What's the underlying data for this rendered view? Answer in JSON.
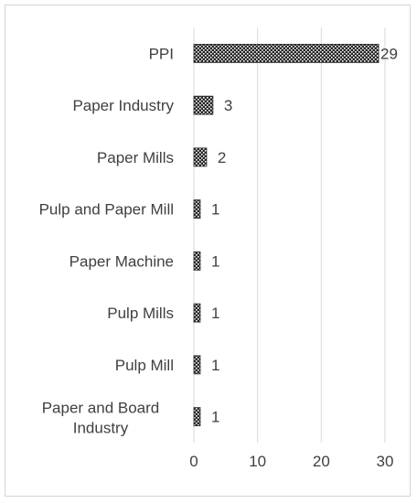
{
  "chart_data": {
    "type": "bar",
    "orientation": "horizontal",
    "categories": [
      "PPI",
      "Paper Industry",
      "Paper Mills",
      "Pulp and Paper Mill",
      "Paper Machine",
      "Pulp Mills",
      "Pulp Mill",
      "Paper and Board Industry"
    ],
    "values": [
      29,
      3,
      2,
      1,
      1,
      1,
      1,
      1
    ],
    "data_labels": [
      "29",
      "3",
      "2",
      "1",
      "1",
      "1",
      "1",
      "1"
    ],
    "xlim": [
      0,
      30
    ],
    "x_ticks": [
      0,
      10,
      20,
      30
    ],
    "x_tick_labels": [
      "0",
      "10",
      "20",
      "30"
    ],
    "grid": "vertical",
    "legend": "none",
    "bar_fill": "crosshatch",
    "colors": {
      "bar_dark": "#262626",
      "bar_light": "#ffffff",
      "grid": "#d9d9d9",
      "text": "#404040",
      "border": "#d4d4d4"
    }
  }
}
